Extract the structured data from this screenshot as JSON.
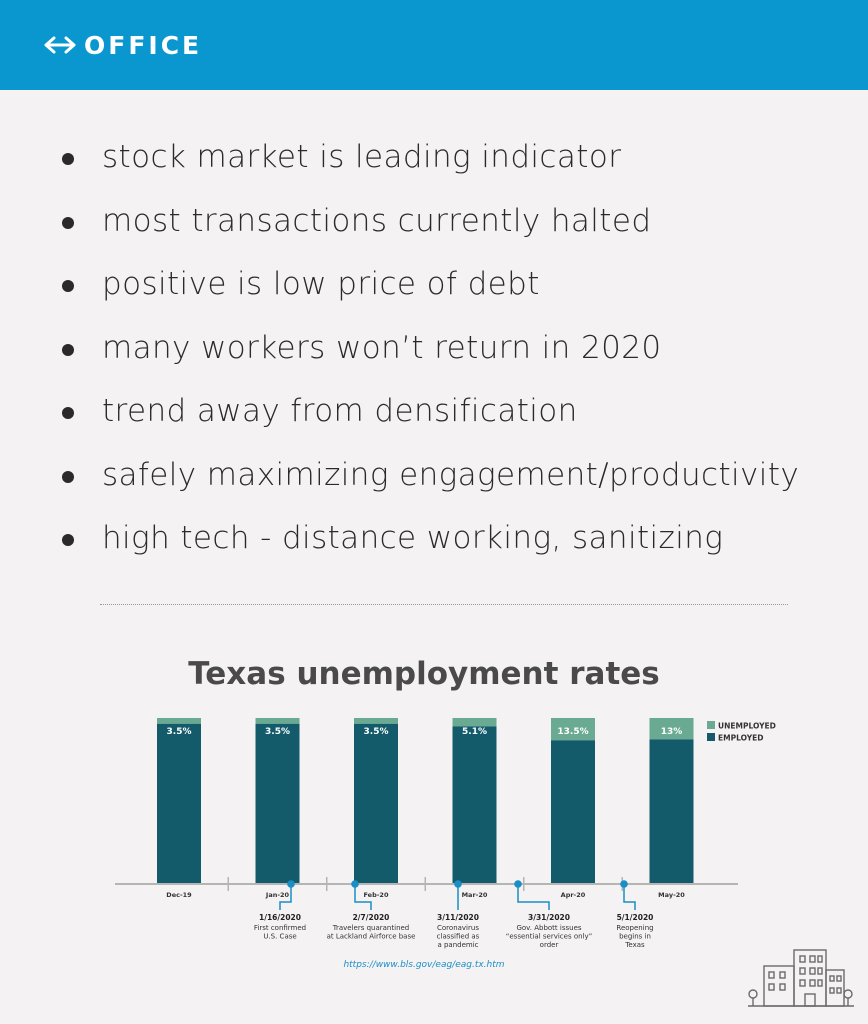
{
  "header": {
    "title": "OFFICE",
    "icon": "double-arrow-icon",
    "background": "#0a97cf"
  },
  "bullets": [
    "stock market is leading indicator",
    "most transactions currently halted",
    "positive is low price of debt",
    "many workers won’t return in 2020",
    "trend away from densification",
    "safely maximizing engagement/productivity",
    "high tech - distance working, sanitizing"
  ],
  "chart_data": {
    "type": "bar",
    "stacked": true,
    "title": "Texas unemployment rates",
    "categories": [
      "Dec-19",
      "Jan-20",
      "Feb-20",
      "Mar-20",
      "Apr-20",
      "May-20"
    ],
    "series": [
      {
        "name": "UNEMPLOYED",
        "color": "#6aaa92",
        "values": [
          3.5,
          3.5,
          3.5,
          5.1,
          13.5,
          13
        ]
      },
      {
        "name": "EMPLOYED",
        "color": "#135b6b",
        "values": [
          96.5,
          96.5,
          96.5,
          94.9,
          86.5,
          87
        ]
      }
    ],
    "data_labels": [
      "3.5%",
      "3.5%",
      "3.5%",
      "5.1%",
      "13.5%",
      "13%"
    ],
    "ylim": [
      0,
      100
    ],
    "legend": "top-right",
    "grid": false,
    "annotations": [
      {
        "date": "1/16/2020",
        "text": "First confirmed U.S. Case",
        "lines": [
          "First confirmed",
          "U.S. Case"
        ]
      },
      {
        "date": "2/7/2020",
        "text": "Travelers quarantined at Lackland Airforce base",
        "lines": [
          "Travelers quarantined",
          "at Lackland Airforce base"
        ]
      },
      {
        "date": "3/11/2020",
        "text": "Coronavirus classified as a pandemic",
        "lines": [
          "Coronavirus",
          "classified as",
          "a pandemic"
        ]
      },
      {
        "date": "3/31/2020",
        "text": "Gov. Abbott issues “essential services only” order",
        "lines": [
          "Gov. Abbott issues",
          "“essential services only”",
          "order"
        ]
      },
      {
        "date": "5/1/2020",
        "text": "Reopening begins in Texas",
        "lines": [
          "Reopening",
          "begins in",
          "Texas"
        ]
      }
    ],
    "source": "https://www.bls.gov/eag/eag.tx.htm"
  },
  "decor": {
    "building_icon": "office-building-icon"
  }
}
